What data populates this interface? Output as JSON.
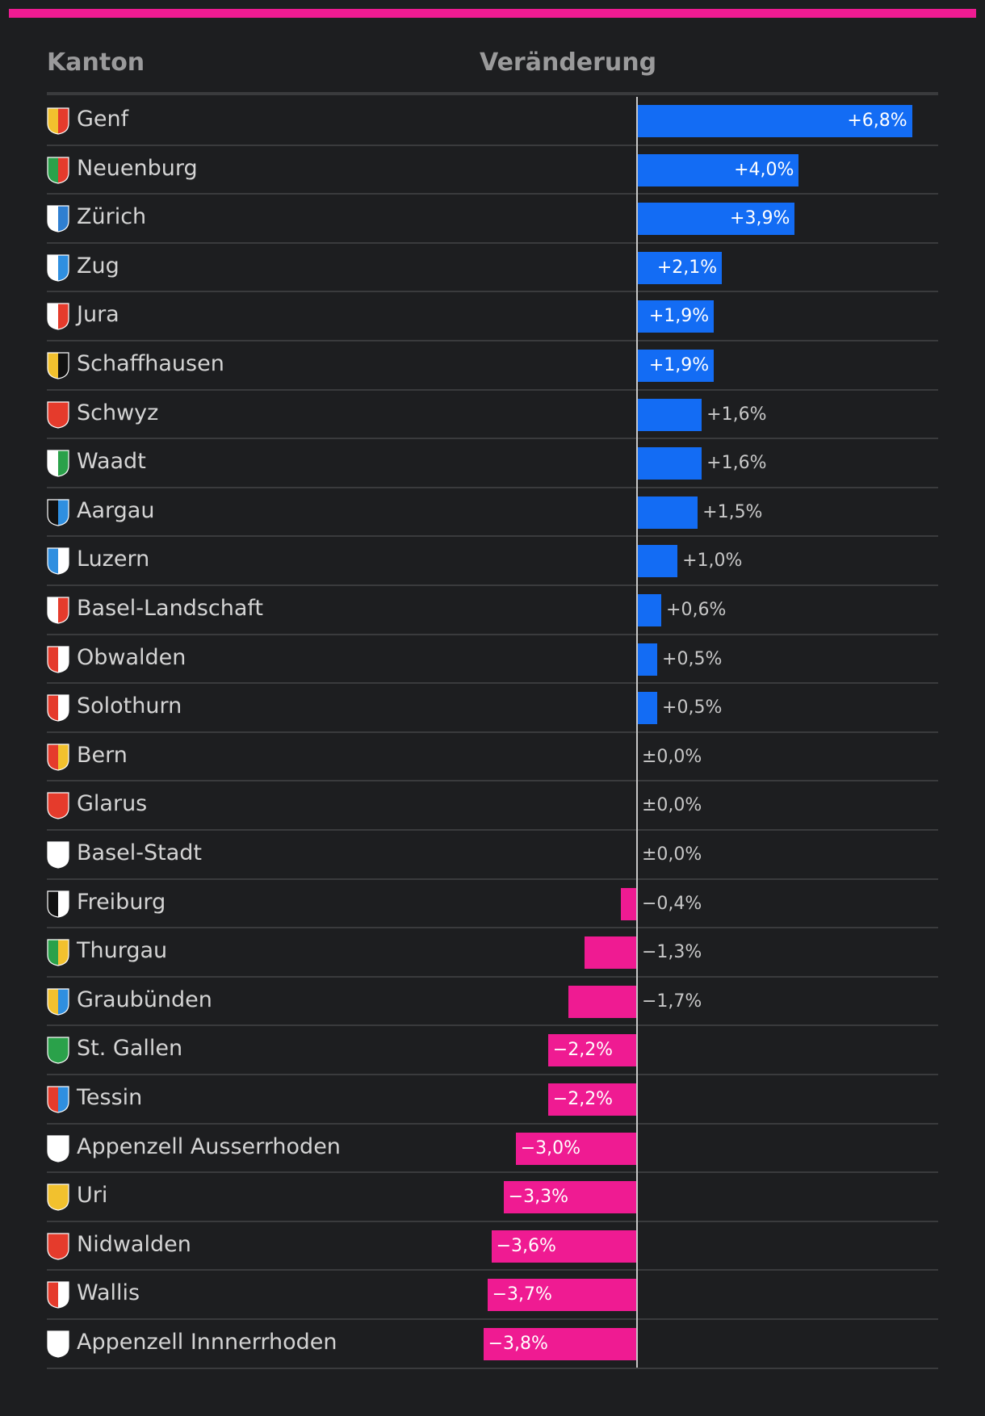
{
  "header": {
    "kanton_label": "Kanton",
    "change_label": "Veränderung"
  },
  "colors": {
    "positive": "#136cf4",
    "negative": "#ef1b92",
    "accent": "#ef1b92",
    "background": "#1d1e20"
  },
  "chart_data": {
    "type": "bar",
    "orientation": "horizontal",
    "xlabel": "Veränderung",
    "ylabel": "Kanton",
    "unit": "%",
    "categories": [
      "Genf",
      "Neuenburg",
      "Zürich",
      "Zug",
      "Jura",
      "Schaffhausen",
      "Schwyz",
      "Waadt",
      "Aargau",
      "Luzern",
      "Basel-Landschaft",
      "Obwalden",
      "Solothurn",
      "Bern",
      "Glarus",
      "Basel-Stadt",
      "Freiburg",
      "Thurgau",
      "Graubünden",
      "St. Gallen",
      "Tessin",
      "Appenzell Ausserrhoden",
      "Uri",
      "Nidwalden",
      "Wallis",
      "Appenzell Innnerrhoden"
    ],
    "values": [
      6.8,
      4.0,
      3.9,
      2.1,
      1.9,
      1.9,
      1.6,
      1.6,
      1.5,
      1.0,
      0.6,
      0.5,
      0.5,
      0.0,
      0.0,
      0.0,
      -0.4,
      -1.3,
      -1.7,
      -2.2,
      -2.2,
      -3.0,
      -3.3,
      -3.6,
      -3.7,
      -3.8
    ],
    "labels": [
      "+6,8%",
      "+4,0%",
      "+3,9%",
      "+2,1%",
      "+1,9%",
      "+1,9%",
      "+1,6%",
      "+1,6%",
      "+1,5%",
      "+1,0%",
      "+0,6%",
      "+0,5%",
      "+0,5%",
      "±0,0%",
      "±0,0%",
      "±0,0%",
      "−0,4%",
      "−1,3%",
      "−1,7%",
      "−2,2%",
      "−2,2%",
      "−3,0%",
      "−3,3%",
      "−3,6%",
      "−3,7%",
      "−3,8%"
    ],
    "crest_icons": [
      "genf-crest-icon",
      "neuenburg-crest-icon",
      "zuerich-crest-icon",
      "zug-crest-icon",
      "jura-crest-icon",
      "schaffhausen-crest-icon",
      "schwyz-crest-icon",
      "waadt-crest-icon",
      "aargau-crest-icon",
      "luzern-crest-icon",
      "basel-landschaft-crest-icon",
      "obwalden-crest-icon",
      "solothurn-crest-icon",
      "bern-crest-icon",
      "glarus-crest-icon",
      "basel-stadt-crest-icon",
      "freiburg-crest-icon",
      "thurgau-crest-icon",
      "graubuenden-crest-icon",
      "st-gallen-crest-icon",
      "tessin-crest-icon",
      "appenzell-ausserrhoden-crest-icon",
      "uri-crest-icon",
      "nidwalden-crest-icon",
      "wallis-crest-icon",
      "appenzell-innerrhoden-crest-icon"
    ],
    "crest_colors": [
      [
        "#f2c12e",
        "#e53b2c"
      ],
      [
        "#2aa14a",
        "#e53b2c"
      ],
      [
        "#ffffff",
        "#2f7fd1"
      ],
      [
        "#ffffff",
        "#2f8fe0"
      ],
      [
        "#ffffff",
        "#e53b2c"
      ],
      [
        "#f2c12e",
        "#111111"
      ],
      [
        "#e53b2c",
        "#e53b2c"
      ],
      [
        "#ffffff",
        "#2aa14a"
      ],
      [
        "#111111",
        "#2f8fe0"
      ],
      [
        "#2f8fe0",
        "#ffffff"
      ],
      [
        "#ffffff",
        "#e53b2c"
      ],
      [
        "#e53b2c",
        "#ffffff"
      ],
      [
        "#e53b2c",
        "#ffffff"
      ],
      [
        "#e53b2c",
        "#f2c12e"
      ],
      [
        "#e53b2c",
        "#e53b2c"
      ],
      [
        "#ffffff",
        "#ffffff"
      ],
      [
        "#111111",
        "#ffffff"
      ],
      [
        "#2aa14a",
        "#f2c12e"
      ],
      [
        "#f2c12e",
        "#2f8fe0"
      ],
      [
        "#2aa14a",
        "#2aa14a"
      ],
      [
        "#e53b2c",
        "#2f8fe0"
      ],
      [
        "#ffffff",
        "#ffffff"
      ],
      [
        "#f2c12e",
        "#f2c12e"
      ],
      [
        "#e53b2c",
        "#e53b2c"
      ],
      [
        "#e53b2c",
        "#ffffff"
      ],
      [
        "#ffffff",
        "#ffffff"
      ]
    ]
  }
}
